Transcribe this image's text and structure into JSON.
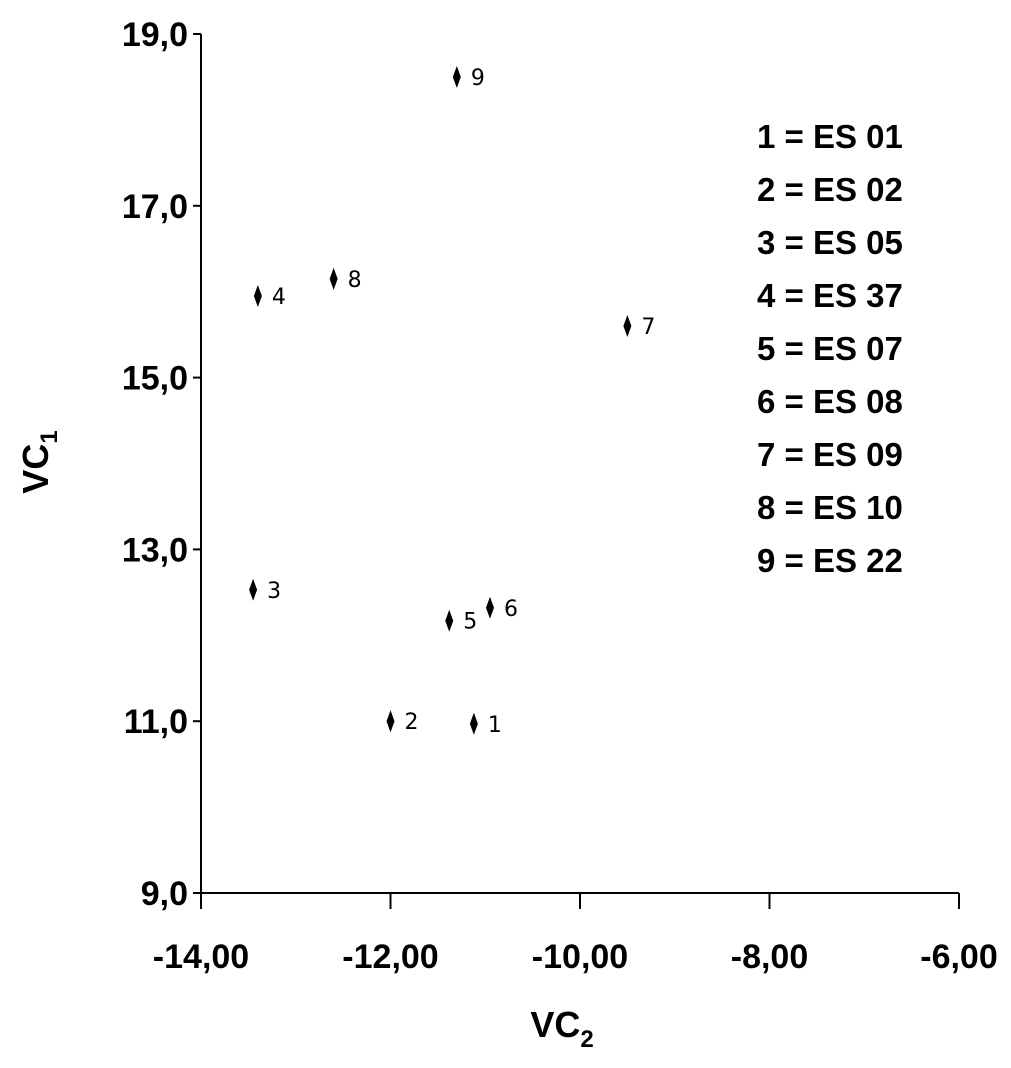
{
  "chart_data": {
    "type": "scatter",
    "xlabel": "VC",
    "xlabel_sub": "2",
    "ylabel": "VC",
    "ylabel_sub": "1",
    "xlim": [
      -14,
      -6
    ],
    "ylim": [
      9,
      19
    ],
    "x_ticks": [
      -14,
      -12,
      -10,
      -8,
      -6
    ],
    "x_tick_labels": [
      "-14,00",
      "-12,00",
      "-10,00",
      "-8,00",
      "-6,00"
    ],
    "y_ticks": [
      9,
      11,
      13,
      15,
      17,
      19
    ],
    "y_tick_labels": [
      "9,0",
      "11,0",
      "13,0",
      "15,0",
      "17,0",
      "19,0"
    ],
    "grid": false,
    "legend_position": "top-right",
    "points": [
      {
        "label": "1",
        "x": -11.12,
        "y": 10.97
      },
      {
        "label": "2",
        "x": -12.0,
        "y": 11.0
      },
      {
        "label": "3",
        "x": -13.45,
        "y": 12.53
      },
      {
        "label": "4",
        "x": -13.4,
        "y": 15.95
      },
      {
        "label": "5",
        "x": -11.38,
        "y": 12.17
      },
      {
        "label": "6",
        "x": -10.95,
        "y": 12.32
      },
      {
        "label": "7",
        "x": -9.5,
        "y": 15.6
      },
      {
        "label": "8",
        "x": -12.6,
        "y": 16.15
      },
      {
        "label": "9",
        "x": -11.3,
        "y": 18.5
      }
    ],
    "legend_entries": [
      "1 = ES 01",
      "2 = ES 02",
      "3 = ES 05",
      "4 = ES 37",
      "5 = ES 07",
      "6 = ES 08",
      "7 = ES 09",
      "8 = ES 10",
      "9 = ES 22"
    ],
    "marker": "diamond",
    "marker_color": "#000000"
  }
}
